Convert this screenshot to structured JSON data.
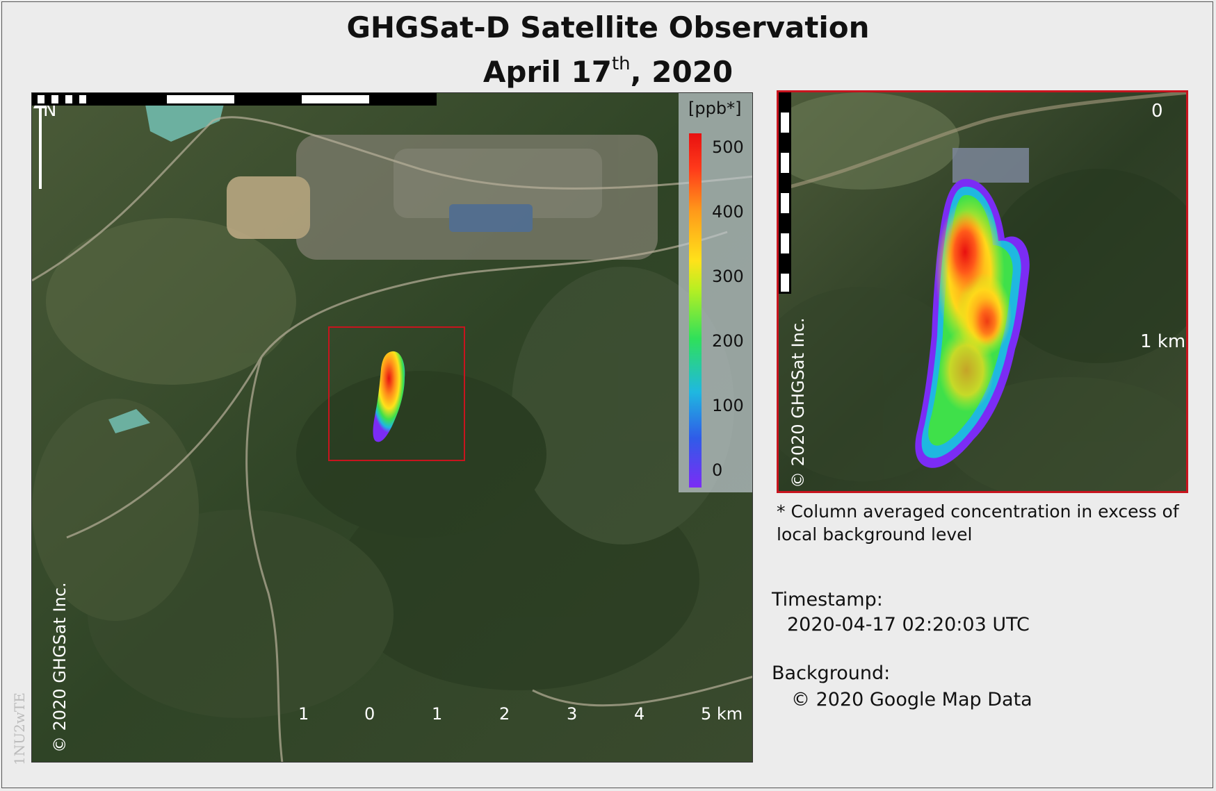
{
  "title": {
    "line1": "GHGSat-D Satellite Observation",
    "line2_prefix": "April 17",
    "line2_sup": "th",
    "line2_suffix": ", 2020"
  },
  "main_map": {
    "north_label": "N",
    "copyright": "© 2020 GHGSat Inc.",
    "scale_labels": [
      "1",
      "0",
      "1",
      "2",
      "3",
      "4",
      "5 km"
    ]
  },
  "colorbar": {
    "unit": "[ppb*]",
    "ticks": [
      "500",
      "400",
      "300",
      "200",
      "100",
      "0"
    ],
    "colors": [
      "#7b2cf5",
      "#2f5ce8",
      "#1fb8e0",
      "#2fe05a",
      "#ffe21a",
      "#ff9a1a",
      "#e81010"
    ]
  },
  "inset": {
    "scale_top": "0",
    "scale_bottom": "1 km",
    "copyright": "© 2020 GHGSat Inc.",
    "border_color": "#c8141e"
  },
  "footnote": "* Column averaged concentration in excess of local background level",
  "timestamp": {
    "label": "Timestamp:",
    "value": "2020-04-17 02:20:03 UTC"
  },
  "background": {
    "label": "Background:",
    "value": "© 2020 Google Map Data"
  },
  "watermark": "1NU2wTE"
}
